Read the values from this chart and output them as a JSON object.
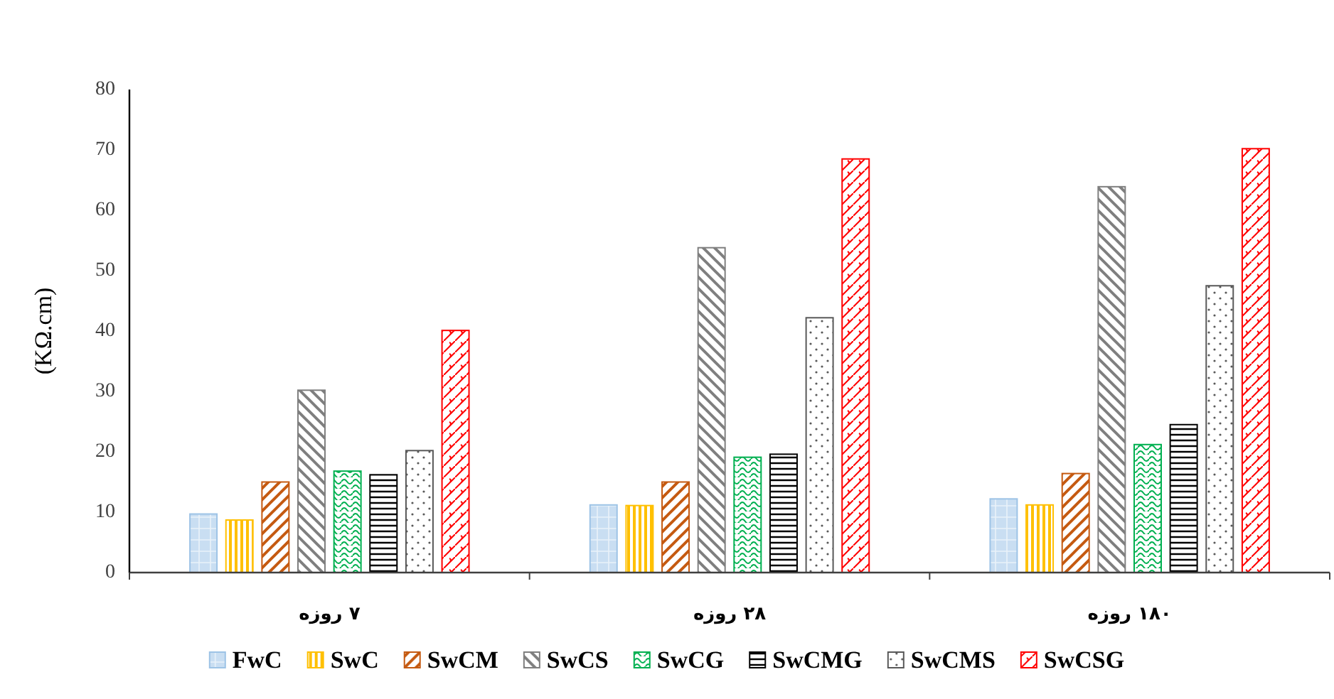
{
  "chart_data": {
    "type": "bar",
    "ylabel": "(KΩ.cm)",
    "categories": [
      "۷ روزه",
      "۲۸ روزه",
      "۱۸۰ روزه"
    ],
    "series": [
      {
        "name": "FwC",
        "color": "#9dc3e6",
        "values": [
          9.7,
          11.2,
          12.2
        ]
      },
      {
        "name": "SwC",
        "color": "#ffc000",
        "values": [
          8.7,
          11.1,
          11.2
        ]
      },
      {
        "name": "SwCM",
        "color": "#c55a11",
        "values": [
          15.0,
          15.0,
          16.4
        ]
      },
      {
        "name": "SwCS",
        "color": "#7f7f7f",
        "values": [
          30.2,
          53.8,
          63.9
        ]
      },
      {
        "name": "SwCG",
        "color": "#00b050",
        "values": [
          16.8,
          19.1,
          21.2
        ]
      },
      {
        "name": "SwCMG",
        "color": "#000000",
        "values": [
          16.2,
          19.6,
          24.5
        ]
      },
      {
        "name": "SwCMS",
        "color": "#595959",
        "values": [
          20.2,
          42.2,
          47.5
        ]
      },
      {
        "name": "SwCSG",
        "color": "#ff0000",
        "values": [
          40.1,
          68.5,
          70.2
        ]
      }
    ],
    "ylim": [
      0,
      80
    ],
    "yticks": [
      0,
      10,
      20,
      30,
      40,
      50,
      60,
      70,
      80
    ],
    "grid": false,
    "legend": "bottom"
  }
}
